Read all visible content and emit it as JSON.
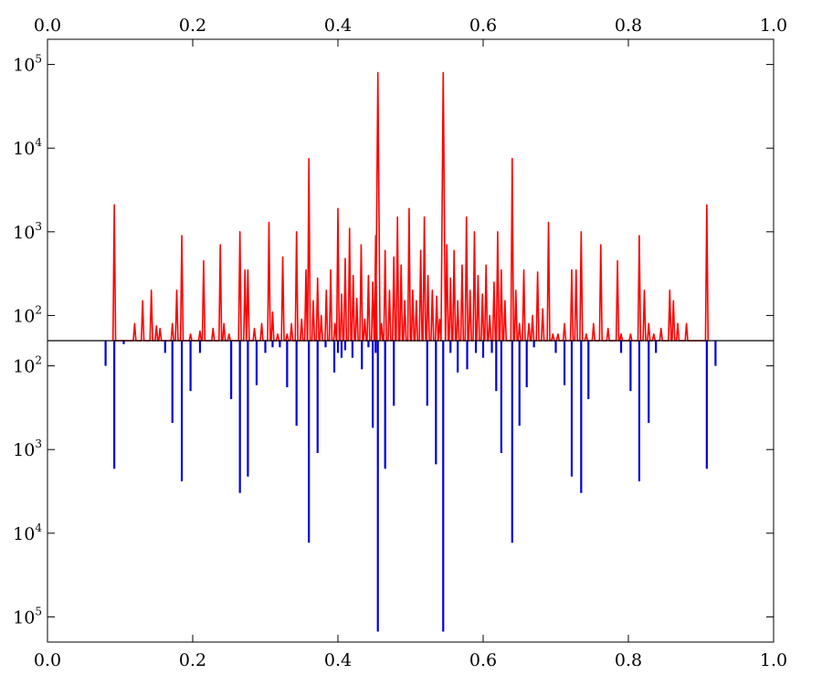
{
  "chart_data": {
    "type": "line",
    "title": "",
    "xlabel": "",
    "ylabel": "",
    "xlim": [
      0.0,
      1.0
    ],
    "x_ticks": [
      "0.0",
      "0.2",
      "0.4",
      "0.6",
      "0.8",
      "1.0"
    ],
    "x_tick_values": [
      0.0,
      0.2,
      0.4,
      0.6,
      0.8,
      1.0
    ],
    "top_panel": {
      "scale": "log",
      "ylim": [
        50,
        200000
      ],
      "y_ticks": [
        {
          "value": 100,
          "base": "10",
          "exp": "2"
        },
        {
          "value": 1000,
          "base": "10",
          "exp": "3"
        },
        {
          "value": 10000,
          "base": "10",
          "exp": "4"
        },
        {
          "value": 100000,
          "base": "10",
          "exp": "5"
        }
      ],
      "color": "#ff0000",
      "baseline": 50,
      "peaks": [
        [
          0.092,
          2100
        ],
        [
          0.12,
          80
        ],
        [
          0.131,
          150
        ],
        [
          0.143,
          200
        ],
        [
          0.15,
          75
        ],
        [
          0.155,
          70
        ],
        [
          0.172,
          80
        ],
        [
          0.178,
          200
        ],
        [
          0.185,
          900
        ],
        [
          0.197,
          60
        ],
        [
          0.21,
          65
        ],
        [
          0.215,
          450
        ],
        [
          0.228,
          70
        ],
        [
          0.238,
          700
        ],
        [
          0.243,
          80
        ],
        [
          0.25,
          60
        ],
        [
          0.265,
          1000
        ],
        [
          0.272,
          350
        ],
        [
          0.276,
          350
        ],
        [
          0.285,
          70
        ],
        [
          0.295,
          80
        ],
        [
          0.305,
          1300
        ],
        [
          0.31,
          110
        ],
        [
          0.317,
          60
        ],
        [
          0.324,
          500
        ],
        [
          0.33,
          60
        ],
        [
          0.336,
          80
        ],
        [
          0.343,
          1000
        ],
        [
          0.35,
          90
        ],
        [
          0.356,
          350
        ],
        [
          0.36,
          7500
        ],
        [
          0.366,
          150
        ],
        [
          0.372,
          280
        ],
        [
          0.377,
          100
        ],
        [
          0.384,
          200
        ],
        [
          0.39,
          350
        ],
        [
          0.396,
          80
        ],
        [
          0.4,
          1900
        ],
        [
          0.405,
          180
        ],
        [
          0.41,
          480
        ],
        [
          0.416,
          1100
        ],
        [
          0.421,
          300
        ],
        [
          0.426,
          160
        ],
        [
          0.432,
          700
        ],
        [
          0.437,
          90
        ],
        [
          0.442,
          300
        ],
        [
          0.448,
          250
        ],
        [
          0.452,
          900
        ],
        [
          0.455,
          80000
        ],
        [
          0.46,
          80
        ],
        [
          0.465,
          600
        ],
        [
          0.471,
          200
        ],
        [
          0.477,
          500
        ],
        [
          0.482,
          1500
        ],
        [
          0.487,
          400
        ],
        [
          0.492,
          150
        ],
        [
          0.498,
          1900
        ],
        [
          0.503,
          200
        ],
        [
          0.508,
          150
        ],
        [
          0.514,
          600
        ],
        [
          0.519,
          1500
        ],
        [
          0.524,
          300
        ],
        [
          0.53,
          200
        ],
        [
          0.536,
          170
        ],
        [
          0.54,
          90
        ],
        [
          0.545,
          80000
        ],
        [
          0.55,
          700
        ],
        [
          0.555,
          280
        ],
        [
          0.56,
          600
        ],
        [
          0.565,
          150
        ],
        [
          0.571,
          400
        ],
        [
          0.577,
          1500
        ],
        [
          0.582,
          200
        ],
        [
          0.588,
          1000
        ],
        [
          0.593,
          300
        ],
        [
          0.599,
          180
        ],
        [
          0.604,
          400
        ],
        [
          0.609,
          100
        ],
        [
          0.615,
          250
        ],
        [
          0.62,
          1000
        ],
        [
          0.625,
          350
        ],
        [
          0.63,
          150
        ],
        [
          0.64,
          7500
        ],
        [
          0.645,
          200
        ],
        [
          0.65,
          80
        ],
        [
          0.656,
          350
        ],
        [
          0.663,
          80
        ],
        [
          0.668,
          100
        ],
        [
          0.675,
          330
        ],
        [
          0.682,
          120
        ],
        [
          0.69,
          1300
        ],
        [
          0.696,
          60
        ],
        [
          0.703,
          60
        ],
        [
          0.712,
          80
        ],
        [
          0.722,
          350
        ],
        [
          0.728,
          350
        ],
        [
          0.735,
          1000
        ],
        [
          0.742,
          60
        ],
        [
          0.752,
          80
        ],
        [
          0.762,
          700
        ],
        [
          0.772,
          70
        ],
        [
          0.785,
          450
        ],
        [
          0.79,
          60
        ],
        [
          0.803,
          60
        ],
        [
          0.815,
          900
        ],
        [
          0.822,
          200
        ],
        [
          0.828,
          80
        ],
        [
          0.835,
          60
        ],
        [
          0.845,
          70
        ],
        [
          0.857,
          200
        ],
        [
          0.862,
          150
        ],
        [
          0.868,
          80
        ],
        [
          0.88,
          80
        ],
        [
          0.908,
          2100
        ]
      ]
    },
    "bottom_panel": {
      "scale": "log",
      "inverted": true,
      "ylim": [
        50,
        200000
      ],
      "y_ticks": [
        {
          "value": 100,
          "base": "10",
          "exp": "2"
        },
        {
          "value": 1000,
          "base": "10",
          "exp": "3"
        },
        {
          "value": 10000,
          "base": "10",
          "exp": "4"
        },
        {
          "value": 100000,
          "base": "10",
          "exp": "5"
        }
      ],
      "color": "#0000dd",
      "sticks": [
        [
          0.08,
          100
        ],
        [
          0.092,
          1700
        ],
        [
          0.105,
          55
        ],
        [
          0.162,
          70
        ],
        [
          0.172,
          480
        ],
        [
          0.185,
          2400
        ],
        [
          0.197,
          200
        ],
        [
          0.21,
          70
        ],
        [
          0.253,
          250
        ],
        [
          0.265,
          3300
        ],
        [
          0.276,
          2100
        ],
        [
          0.288,
          170
        ],
        [
          0.3,
          70
        ],
        [
          0.31,
          60
        ],
        [
          0.32,
          60
        ],
        [
          0.33,
          180
        ],
        [
          0.343,
          520
        ],
        [
          0.36,
          13000
        ],
        [
          0.372,
          1100
        ],
        [
          0.383,
          60
        ],
        [
          0.395,
          120
        ],
        [
          0.4,
          70
        ],
        [
          0.405,
          80
        ],
        [
          0.41,
          65
        ],
        [
          0.42,
          80
        ],
        [
          0.433,
          110
        ],
        [
          0.442,
          60
        ],
        [
          0.448,
          550
        ],
        [
          0.452,
          70
        ],
        [
          0.455,
          150000
        ],
        [
          0.465,
          1700
        ],
        [
          0.477,
          300
        ],
        [
          0.523,
          300
        ],
        [
          0.535,
          1500
        ],
        [
          0.545,
          150000
        ],
        [
          0.555,
          70
        ],
        [
          0.565,
          120
        ],
        [
          0.578,
          110
        ],
        [
          0.59,
          70
        ],
        [
          0.6,
          80
        ],
        [
          0.612,
          70
        ],
        [
          0.618,
          200
        ],
        [
          0.625,
          1100
        ],
        [
          0.64,
          13000
        ],
        [
          0.65,
          520
        ],
        [
          0.66,
          180
        ],
        [
          0.67,
          60
        ],
        [
          0.7,
          70
        ],
        [
          0.712,
          170
        ],
        [
          0.722,
          2100
        ],
        [
          0.735,
          3300
        ],
        [
          0.745,
          250
        ],
        [
          0.79,
          70
        ],
        [
          0.803,
          200
        ],
        [
          0.815,
          2400
        ],
        [
          0.828,
          480
        ],
        [
          0.838,
          70
        ],
        [
          0.908,
          1700
        ],
        [
          0.92,
          100
        ]
      ]
    }
  }
}
